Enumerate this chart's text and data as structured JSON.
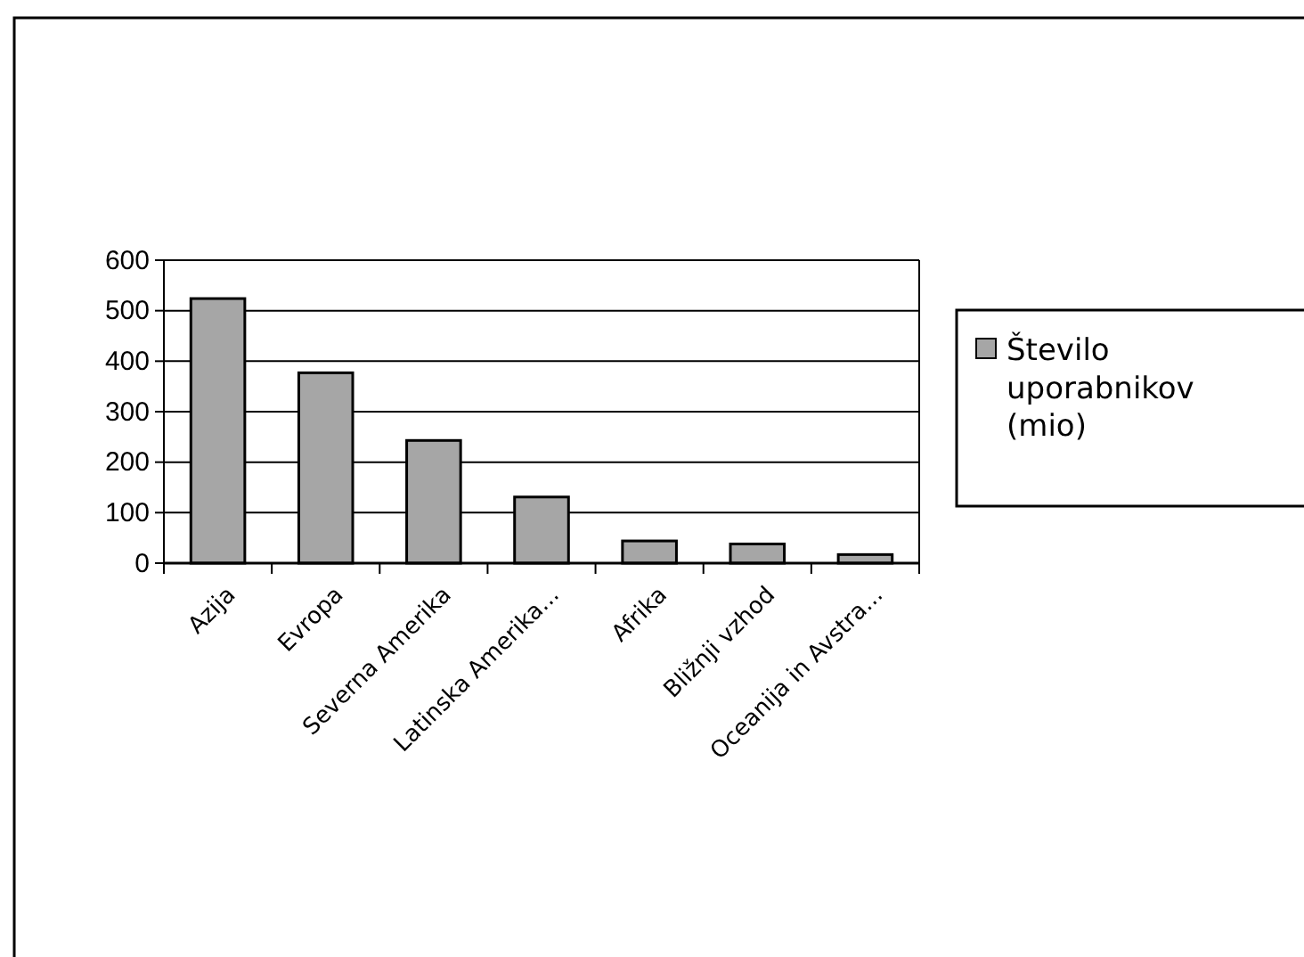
{
  "chart_data": {
    "type": "bar",
    "categories": [
      "Azija",
      "Evropa",
      "Severna Amerika",
      "Latinska Amerika...",
      "Afrika",
      "Bližnji vzhod",
      "Oceanija in Avstra..."
    ],
    "series": [
      {
        "name": "Število uporabnikov (mio)",
        "color": "#a6a6a6",
        "values": [
          524,
          377,
          243,
          131,
          44,
          38,
          17
        ]
      }
    ],
    "ylim": [
      0,
      600
    ],
    "yticks": [
      0,
      100,
      200,
      300,
      400,
      500,
      600
    ],
    "grid": "y",
    "legend": "right"
  }
}
